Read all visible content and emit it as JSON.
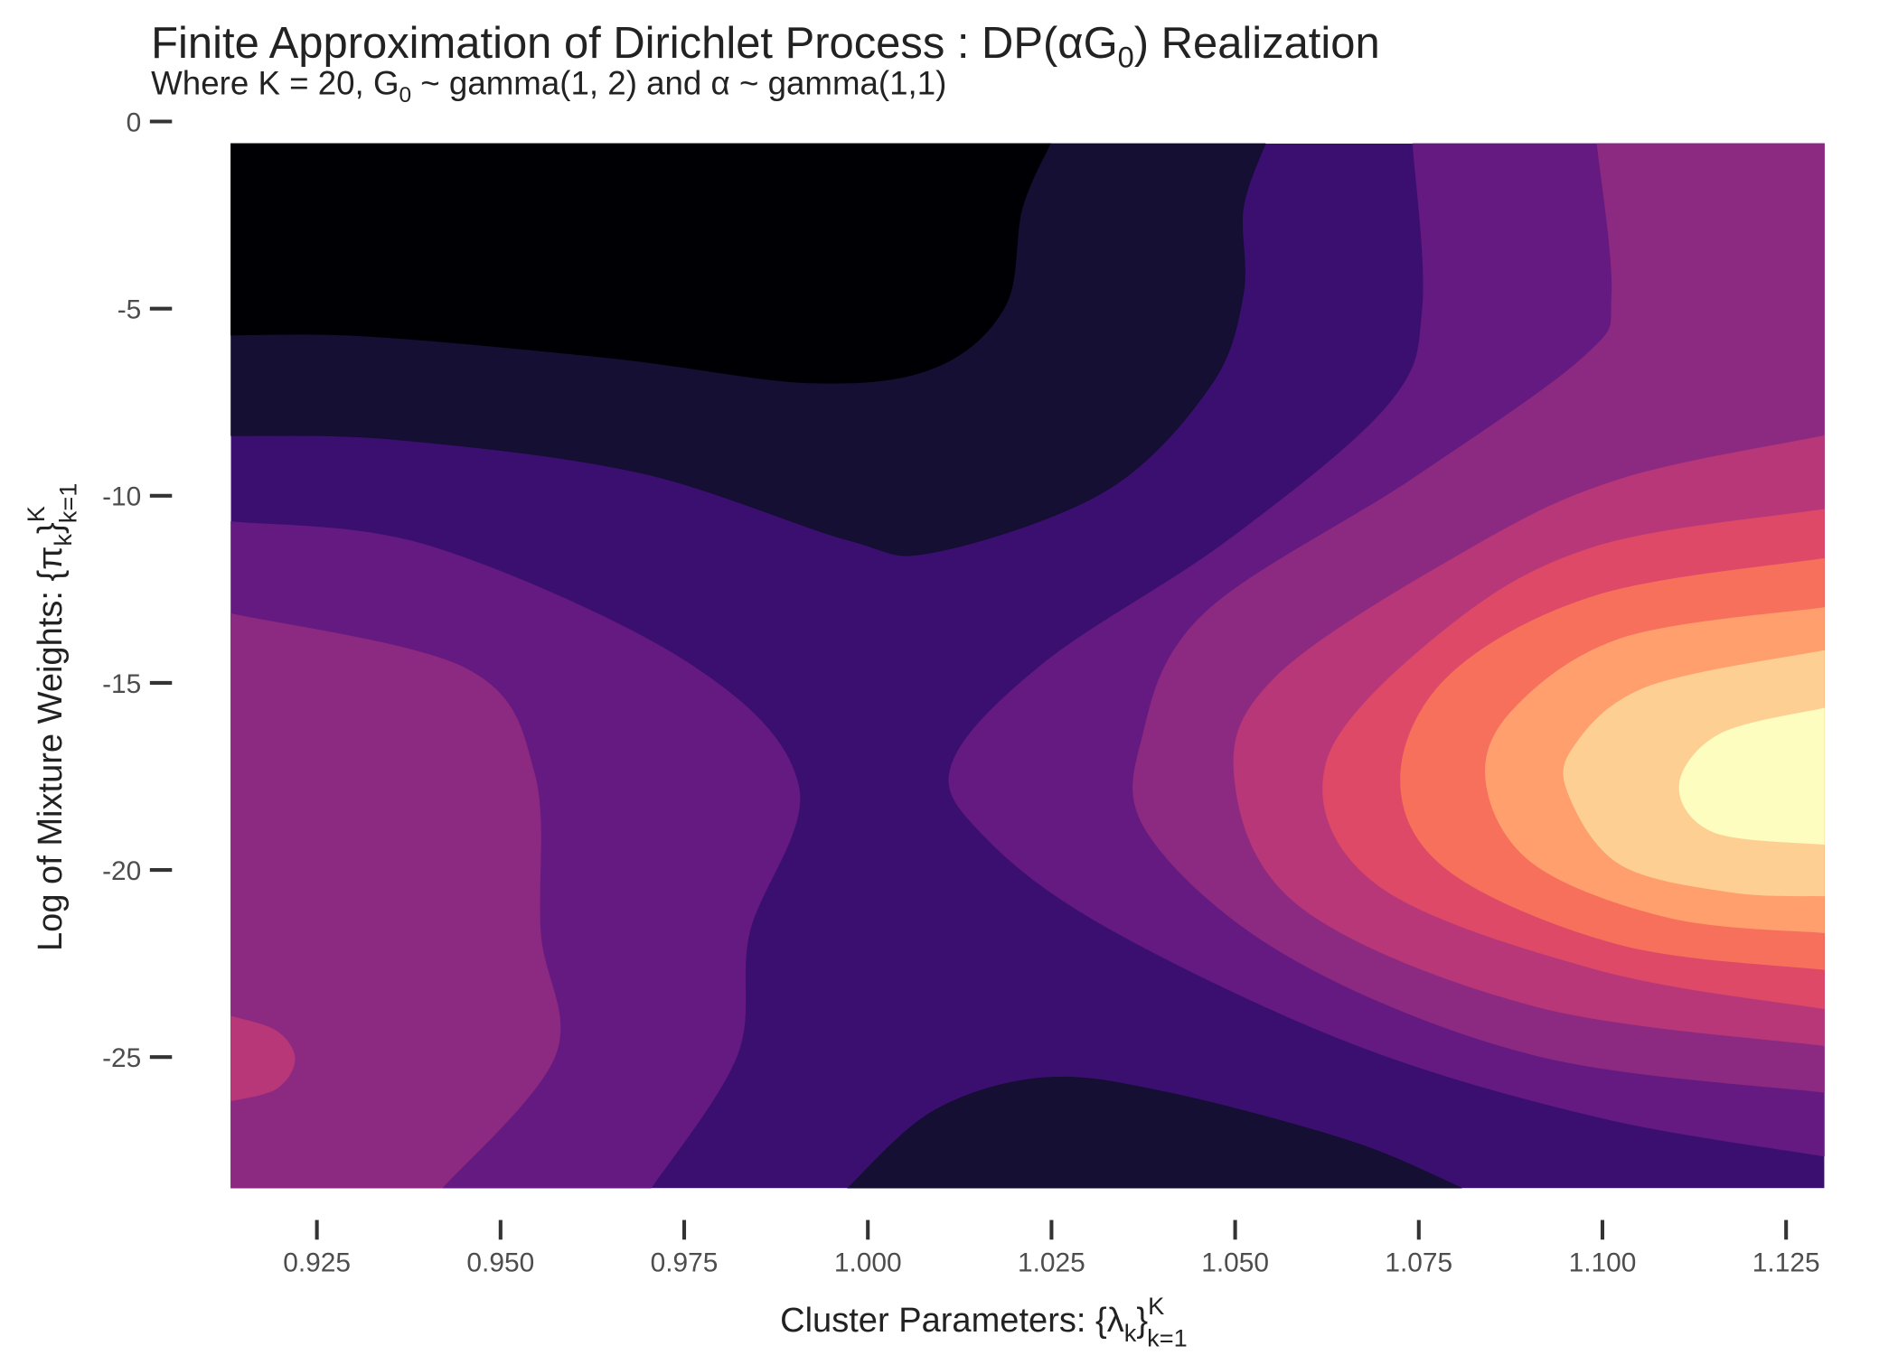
{
  "chart_data": {
    "type": "contour",
    "title": [
      "Finite Approximation of Dirichlet Process : DP(αG",
      "0",
      ") Realization"
    ],
    "subtitle": [
      "Where K = 20, G",
      "0",
      " ~  gamma(1, 2) and α ~  gamma(1,1)"
    ],
    "x_label": [
      "Cluster Parameters: {λ",
      "k",
      "}",
      "K",
      "k=1"
    ],
    "y_label": [
      "Log of Mixture Weights: {π",
      "k",
      "}",
      "K",
      "k=1"
    ],
    "xlim": [
      0.9133,
      1.1302
    ],
    "ylim": [
      -28.5,
      0
    ],
    "xticks": [
      {
        "value": 0.925,
        "label": "0.925"
      },
      {
        "value": 0.95,
        "label": "0.950"
      },
      {
        "value": 0.975,
        "label": "0.975"
      },
      {
        "value": 1.0,
        "label": "1.000"
      },
      {
        "value": 1.025,
        "label": "1.025"
      },
      {
        "value": 1.05,
        "label": "1.050"
      },
      {
        "value": 1.075,
        "label": "1.075"
      },
      {
        "value": 1.1,
        "label": "1.100"
      },
      {
        "value": 1.125,
        "label": "1.125"
      }
    ],
    "yticks": [
      0,
      -5,
      -10,
      -15,
      -20,
      -25
    ],
    "colors": [
      "#000004",
      "#140f33",
      "#3b0f6f",
      "#641a80",
      "#8c2981",
      "#b73779",
      "#de4968",
      "#f7705c",
      "#fe9f6d",
      "#fecf92",
      "#fcfdbf"
    ]
  }
}
